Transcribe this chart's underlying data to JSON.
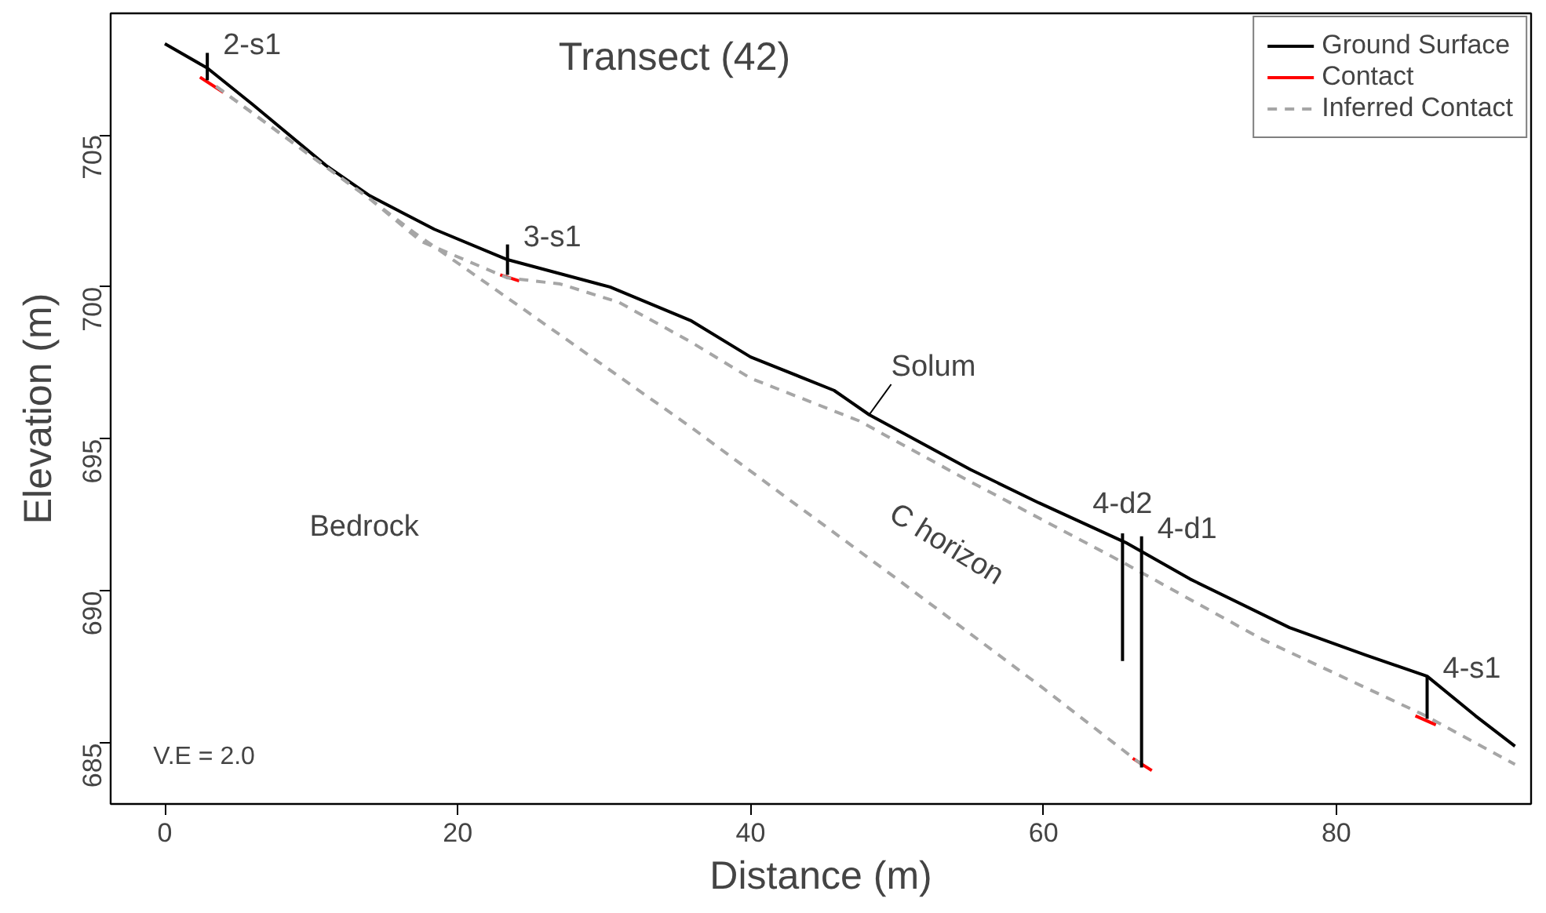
{
  "chart_data": {
    "type": "line",
    "title": "Transect (42)",
    "xlabel": "Distance (m)",
    "ylabel": "Elevation (m)",
    "xlim": [
      -3.7,
      93.3
    ],
    "ylim": [
      683.0,
      709.0
    ],
    "xticks": [
      0,
      20,
      40,
      60,
      80
    ],
    "yticks": [
      685,
      690,
      695,
      700,
      705
    ],
    "grid": false,
    "legend": "top right",
    "line_style": "solid",
    "marker": "none",
    "series": [
      {
        "name": "Ground Surface",
        "color": "#000000",
        "x": [
          0,
          2.9,
          6,
          11,
          14,
          18.4,
          23.4,
          30.4,
          35.9,
          40,
          45.7,
          48.1,
          55,
          59.7,
          65.6,
          70,
          76.8,
          82,
          86.2,
          89.5,
          92.2
        ],
        "values": [
          708,
          707.2,
          706.0,
          704.0,
          703.0,
          701.9,
          700.9,
          700.0,
          698.9,
          697.7,
          696.6,
          695.8,
          694.0,
          692.9,
          691.6,
          690.4,
          688.8,
          687.9,
          687.2,
          685.9,
          684.9
        ]
      },
      {
        "name": "Contact",
        "color": "#ff0000",
        "x": [
          2.4,
          4.0
        ],
        "values": [
          706.9,
          706.4
        ]
      },
      {
        "color": "#ff0000",
        "x": [
          22.9,
          24.2
        ],
        "values": [
          700.4,
          700.2
        ]
      },
      {
        "color": "#ff0000",
        "x": [
          66.1,
          67.4
        ],
        "values": [
          684.5,
          684.1
        ]
      },
      {
        "color": "#ff0000",
        "x": [
          85.4,
          86.8
        ],
        "values": [
          685.9,
          685.6
        ]
      },
      {
        "name": "Inferred Contact",
        "color": "#a6a6a6",
        "line_style": "dashed",
        "x": [
          3.5,
          10,
          14,
          17.5,
          23.4,
          27,
          31,
          35.9,
          40,
          47.4,
          55,
          65.6,
          75,
          86.1,
          92.2
        ],
        "values": [
          706.6,
          704.3,
          702.9,
          701.5,
          700.3,
          700.1,
          699.5,
          698.2,
          697.0,
          695.6,
          693.6,
          690.9,
          688.4,
          685.9,
          684.3
        ]
      },
      {
        "color": "#a6a6a6",
        "line_style": "dashed",
        "x": [
          3.5,
          10,
          14,
          17,
          25,
          35.9,
          42.1,
          50,
          60,
          66.7
        ],
        "values": [
          706.6,
          704.3,
          702.9,
          701.8,
          699.1,
          695.4,
          693.2,
          690.4,
          686.8,
          684.3
        ]
      },
      {
        "color": "#000000",
        "x": [
          2.9,
          2.9
        ],
        "values": [
          707.7,
          706.8
        ]
      },
      {
        "color": "#000000",
        "x": [
          23.4,
          23.4
        ],
        "values": [
          701.4,
          700.4
        ]
      },
      {
        "color": "#000000",
        "x": [
          65.4,
          65.4
        ],
        "values": [
          691.9,
          687.7
        ]
      },
      {
        "color": "#000000",
        "x": [
          66.7,
          66.7
        ],
        "values": [
          691.8,
          684.2
        ]
      },
      {
        "color": "#000000",
        "x": [
          86.2,
          86.2
        ],
        "values": [
          687.2,
          685.8
        ]
      }
    ],
    "annotations": [
      {
        "text": "2-s1",
        "x": 2.9,
        "y": 707.7
      },
      {
        "text": "3-s1",
        "x": 23.4,
        "y": 701.4
      },
      {
        "text": "4-d2",
        "x": 65.4,
        "y": 691.9
      },
      {
        "text": "4-d1",
        "x": 66.7,
        "y": 691.8
      },
      {
        "text": "4-s1",
        "x": 86.2,
        "y": 687.2
      },
      {
        "text": "Solum",
        "x": 48.1,
        "y": 695.8
      },
      "C horizon",
      "Bedrock",
      "V.E = 2.0"
    ]
  }
}
